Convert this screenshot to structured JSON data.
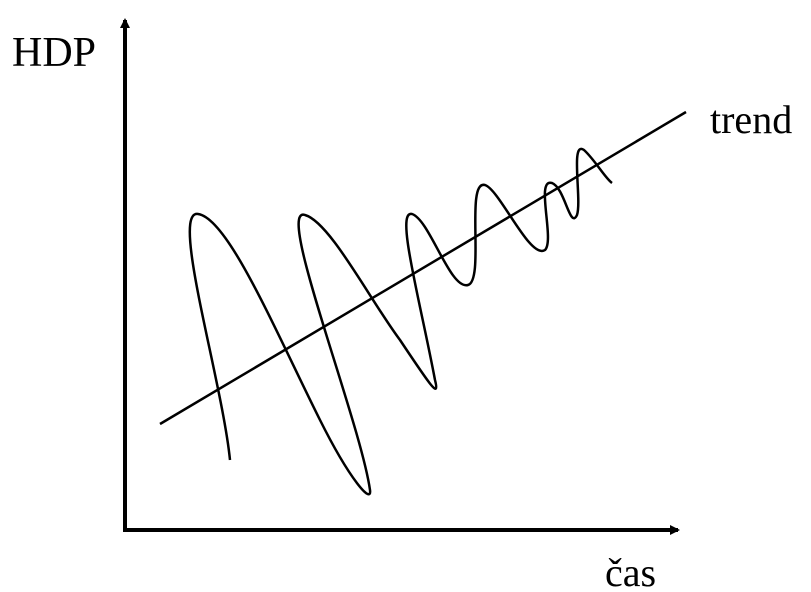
{
  "y_axis_label": "HDP",
  "x_axis_label": "čas",
  "trend_label": "trend"
}
